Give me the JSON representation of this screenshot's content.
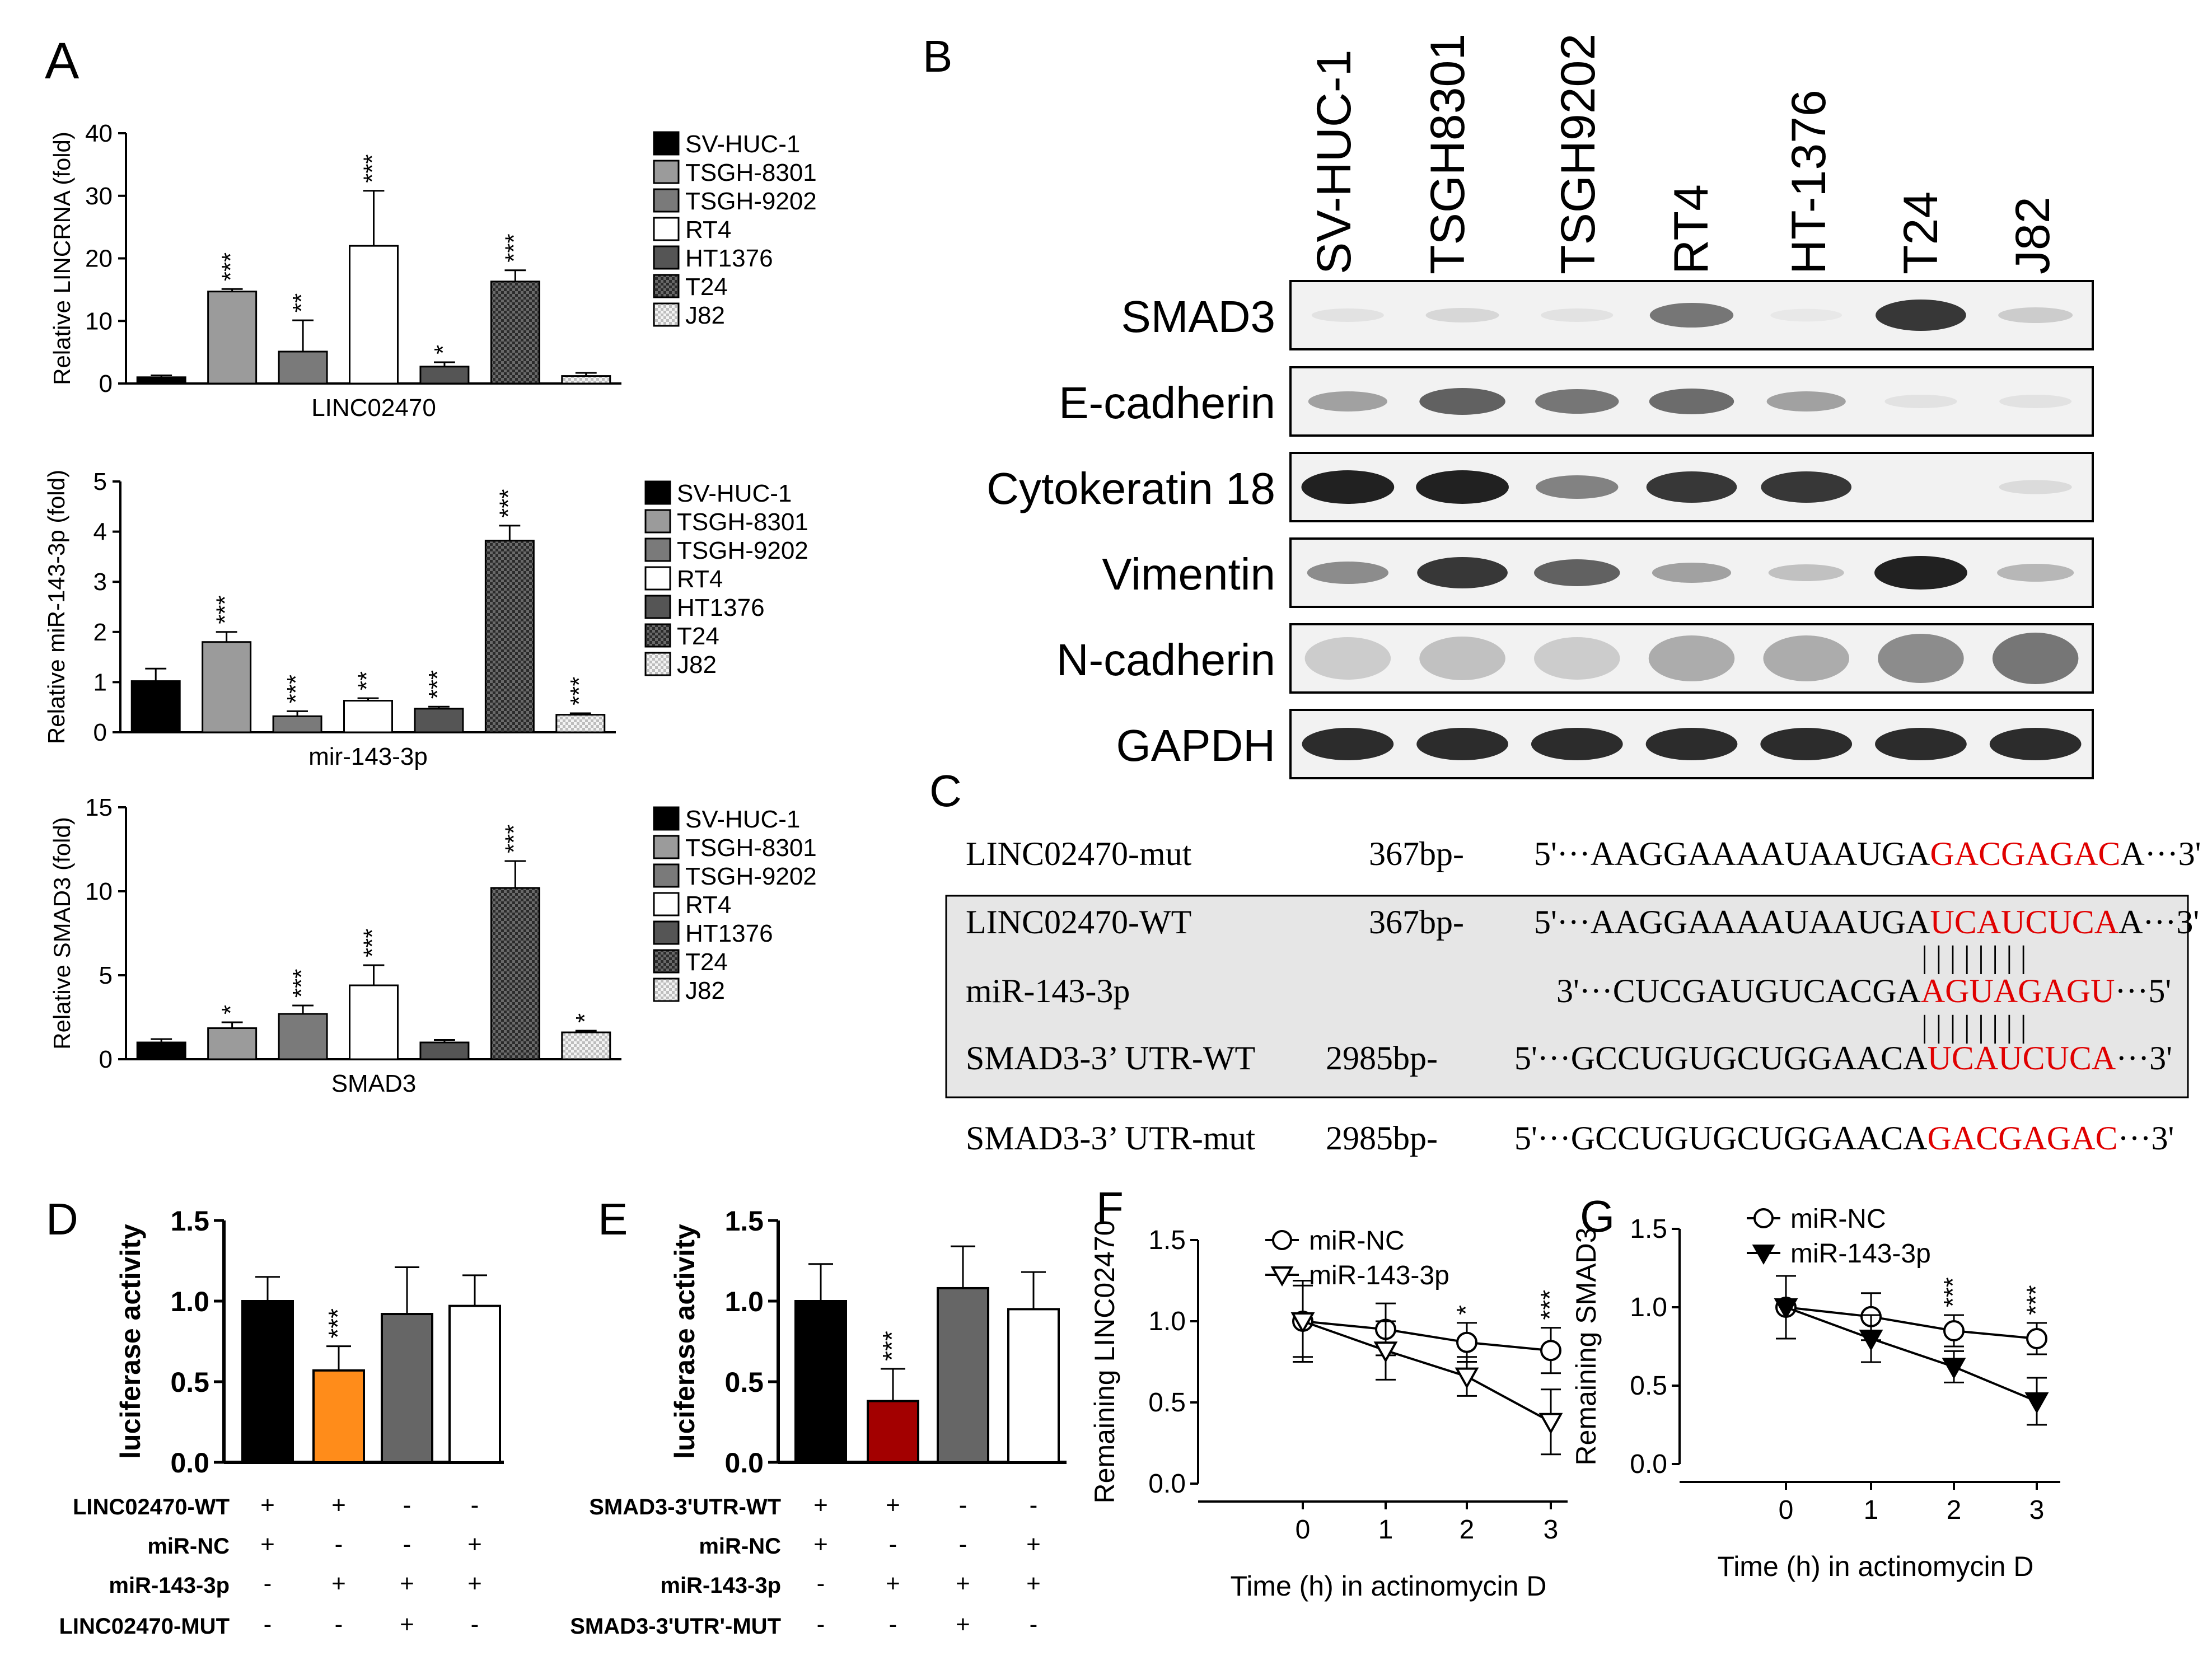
{
  "panels": {
    "A": "A",
    "B": "B",
    "C": "C",
    "D": "D",
    "E": "E",
    "F": "F",
    "G": "G"
  },
  "colors": {
    "sv_huc_1": "#000000",
    "tsgh_8301": "#9b9b9b",
    "tsgh_9202": "#7a7a7a",
    "rt4": "#ffffff",
    "ht1376": "#555555",
    "t24": "#2e2e2e",
    "j82": "#e8e8e8",
    "orange": "#ff8c1a",
    "darkred": "#a30000",
    "seq_red": "#e00000",
    "gray_box": "#e6e6e6"
  },
  "chart_data": [
    {
      "id": "A1",
      "type": "bar",
      "ylabel": "Relative LINCRNA (fold)",
      "xlabel": "LINC02470",
      "ylim": [
        0,
        40
      ],
      "yticks": [
        0,
        10,
        20,
        30,
        40
      ],
      "categories": [
        "SV-HUC-1",
        "TSGH-8301",
        "TSGH-9202",
        "RT4",
        "HT1376",
        "T24",
        "J82"
      ],
      "values": [
        1.0,
        14.7,
        5.1,
        22.0,
        2.7,
        16.3,
        1.2
      ],
      "errors": [
        0.3,
        0.4,
        5.0,
        8.8,
        0.7,
        1.8,
        0.5
      ],
      "significance": [
        "",
        "***",
        "**",
        "***",
        "*",
        "***",
        ""
      ],
      "legend": [
        "SV-HUC-1",
        "TSGH-8301",
        "TSGH-9202",
        "RT4",
        "HT1376",
        "T24",
        "J82"
      ]
    },
    {
      "id": "A2",
      "type": "bar",
      "ylabel": "Relative miR-143-3p (fold)",
      "xlabel": "mir-143-3p",
      "ylim": [
        0,
        5
      ],
      "yticks": [
        0,
        1,
        2,
        3,
        4,
        5
      ],
      "categories": [
        "SV-HUC-1",
        "TSGH-8301",
        "TSGH-9202",
        "RT4",
        "HT1376",
        "T24",
        "J82"
      ],
      "values": [
        1.02,
        1.8,
        0.32,
        0.63,
        0.47,
        3.82,
        0.35
      ],
      "errors": [
        0.25,
        0.2,
        0.1,
        0.05,
        0.04,
        0.3,
        0.03
      ],
      "significance": [
        "",
        "***",
        "***",
        "**",
        "***",
        "***",
        "***"
      ],
      "legend": [
        "SV-HUC-1",
        "TSGH-8301",
        "TSGH-9202",
        "RT4",
        "HT1376",
        "T24",
        "J82"
      ]
    },
    {
      "id": "A3",
      "type": "bar",
      "ylabel": "Relative SMAD3 (fold)",
      "xlabel": "SMAD3",
      "ylim": [
        0,
        15
      ],
      "yticks": [
        0,
        5,
        10,
        15
      ],
      "categories": [
        "SV-HUC-1",
        "TSGH-8301",
        "TSGH-9202",
        "RT4",
        "HT1376",
        "T24",
        "J82"
      ],
      "values": [
        1.0,
        1.85,
        2.7,
        4.4,
        1.0,
        10.2,
        1.6
      ],
      "errors": [
        0.2,
        0.35,
        0.5,
        1.2,
        0.15,
        1.6,
        0.1
      ],
      "significance": [
        "",
        "*",
        "***",
        "***",
        "",
        "***",
        "*"
      ],
      "legend": [
        "SV-HUC-1",
        "TSGH-8301",
        "TSGH-9202",
        "RT4",
        "HT1376",
        "T24",
        "J82"
      ]
    },
    {
      "id": "D",
      "type": "bar",
      "ylabel": "luciferase activity",
      "ylim": [
        0,
        1.5
      ],
      "yticks": [
        "0.0",
        "0.5",
        "1.0",
        "1.5"
      ],
      "values": [
        1.0,
        0.57,
        0.92,
        0.97
      ],
      "errors": [
        0.15,
        0.15,
        0.29,
        0.19
      ],
      "significance": [
        "",
        "***",
        "",
        ""
      ],
      "row_labels": [
        "LINC02470-WT",
        "miR-NC",
        "miR-143-3p",
        "LINC02470-MUT"
      ],
      "signs": [
        [
          "+",
          "+",
          "-",
          "-"
        ],
        [
          "+",
          "-",
          "-",
          "+"
        ],
        [
          "-",
          "+",
          "+",
          "+"
        ],
        [
          "-",
          "-",
          "+",
          "-"
        ]
      ]
    },
    {
      "id": "E",
      "type": "bar",
      "ylabel": "luciferase activity",
      "ylim": [
        0,
        1.5
      ],
      "yticks": [
        "0.0",
        "0.5",
        "1.0",
        "1.5"
      ],
      "values": [
        1.0,
        0.38,
        1.08,
        0.95
      ],
      "errors": [
        0.23,
        0.2,
        0.26,
        0.23
      ],
      "significance": [
        "",
        "***",
        "",
        ""
      ],
      "row_labels": [
        "SMAD3-3'UTR-WT",
        "miR-NC",
        "miR-143-3p",
        "SMAD3-3'UTR'-MUT"
      ],
      "signs": [
        [
          "+",
          "+",
          "-",
          "-"
        ],
        [
          "+",
          "-",
          "-",
          "+"
        ],
        [
          "-",
          "+",
          "+",
          "+"
        ],
        [
          "-",
          "-",
          "+",
          "-"
        ]
      ]
    },
    {
      "id": "F",
      "type": "line",
      "ylabel": "Remaining LINC02470",
      "xlabel": "Time  (h) in actinomycin D",
      "ylim": [
        0,
        1.5
      ],
      "yticks": [
        "0.0",
        "0.5",
        "1.0",
        "1.5"
      ],
      "x": [
        0,
        1,
        2,
        3
      ],
      "series": [
        {
          "name": "miR-NC",
          "values": [
            1.0,
            0.95,
            0.87,
            0.82
          ],
          "errors": [
            0.22,
            0.16,
            0.12,
            0.14
          ],
          "marker": "circle"
        },
        {
          "name": "miR-143-3p",
          "values": [
            1.0,
            0.82,
            0.66,
            0.38
          ],
          "errors": [
            0.25,
            0.18,
            0.12,
            0.2
          ],
          "marker": "triangle-down-open"
        }
      ],
      "significance": [
        "",
        "",
        "*",
        "***"
      ]
    },
    {
      "id": "G",
      "type": "line",
      "ylabel": "Remaining SMAD3",
      "xlabel": "Time  (h) in actinomycin D",
      "ylim": [
        0,
        1.5
      ],
      "yticks": [
        "0.0",
        "0.5",
        "1.0",
        "1.5"
      ],
      "x": [
        0,
        1,
        2,
        3
      ],
      "series": [
        {
          "name": "miR-NC",
          "values": [
            1.0,
            0.94,
            0.85,
            0.8
          ],
          "errors": [
            0.2,
            0.15,
            0.1,
            0.1
          ],
          "marker": "circle"
        },
        {
          "name": "miR-143-3p",
          "values": [
            1.0,
            0.8,
            0.62,
            0.4
          ],
          "errors": [
            0.2,
            0.15,
            0.1,
            0.15
          ],
          "marker": "triangle-down-filled"
        }
      ],
      "significance": [
        "",
        "",
        "***",
        "***"
      ]
    }
  ],
  "western": {
    "lanes": [
      "SV-HUC-1",
      "TSGH8301",
      "TSGH9202",
      "RT4",
      "HT-1376",
      "T24",
      "J82"
    ],
    "proteins": [
      "SMAD3",
      "E-cadherin",
      "Cytokeratin  18",
      "Vimentin",
      "N-cadherin",
      "GAPDH"
    ],
    "intensity": [
      [
        0.05,
        0.1,
        0.05,
        0.55,
        0.02,
        0.85,
        0.15
      ],
      [
        0.35,
        0.65,
        0.55,
        0.6,
        0.35,
        0.05,
        0.05
      ],
      [
        0.95,
        0.95,
        0.5,
        0.85,
        0.85,
        0.0,
        0.08
      ],
      [
        0.45,
        0.85,
        0.65,
        0.35,
        0.2,
        0.95,
        0.25
      ],
      [
        0.15,
        0.2,
        0.15,
        0.3,
        0.3,
        0.45,
        0.55
      ],
      [
        0.9,
        0.9,
        0.9,
        0.9,
        0.9,
        0.9,
        0.9
      ]
    ]
  },
  "sequences": {
    "rows": [
      {
        "name": "LINC02470-mut",
        "size": "367bp-",
        "prefix": "5'···AAGGAAAAUAAUGA",
        "highlight": "GACGAGAC",
        "suffix": "A···3'"
      },
      {
        "name": "LINC02470-WT",
        "size": "367bp-",
        "prefix": "5'···AAGGAAAAUAAUGA",
        "highlight": "UCAUCUCA",
        "suffix": "A···3'"
      },
      {
        "name": "miR-143-3p",
        "size": "",
        "prefix": "3'···CUCGAUGUCACGA",
        "highlight": "AGUAGAGU",
        "suffix": "···5'"
      },
      {
        "name": "SMAD3-3’  UTR-WT",
        "size": "2985bp-",
        "prefix": "5'···GCCUGUGCUGGAACA",
        "highlight": "UCAUCUCA",
        "suffix": "···3'"
      },
      {
        "name": "SMAD3-3’  UTR-mut",
        "size": "2985bp-",
        "prefix": "5'···GCCUGUGCUGGAACA",
        "highlight": "GACGAGAC",
        "suffix": "···3'"
      }
    ],
    "pairing": "||||||||"
  }
}
